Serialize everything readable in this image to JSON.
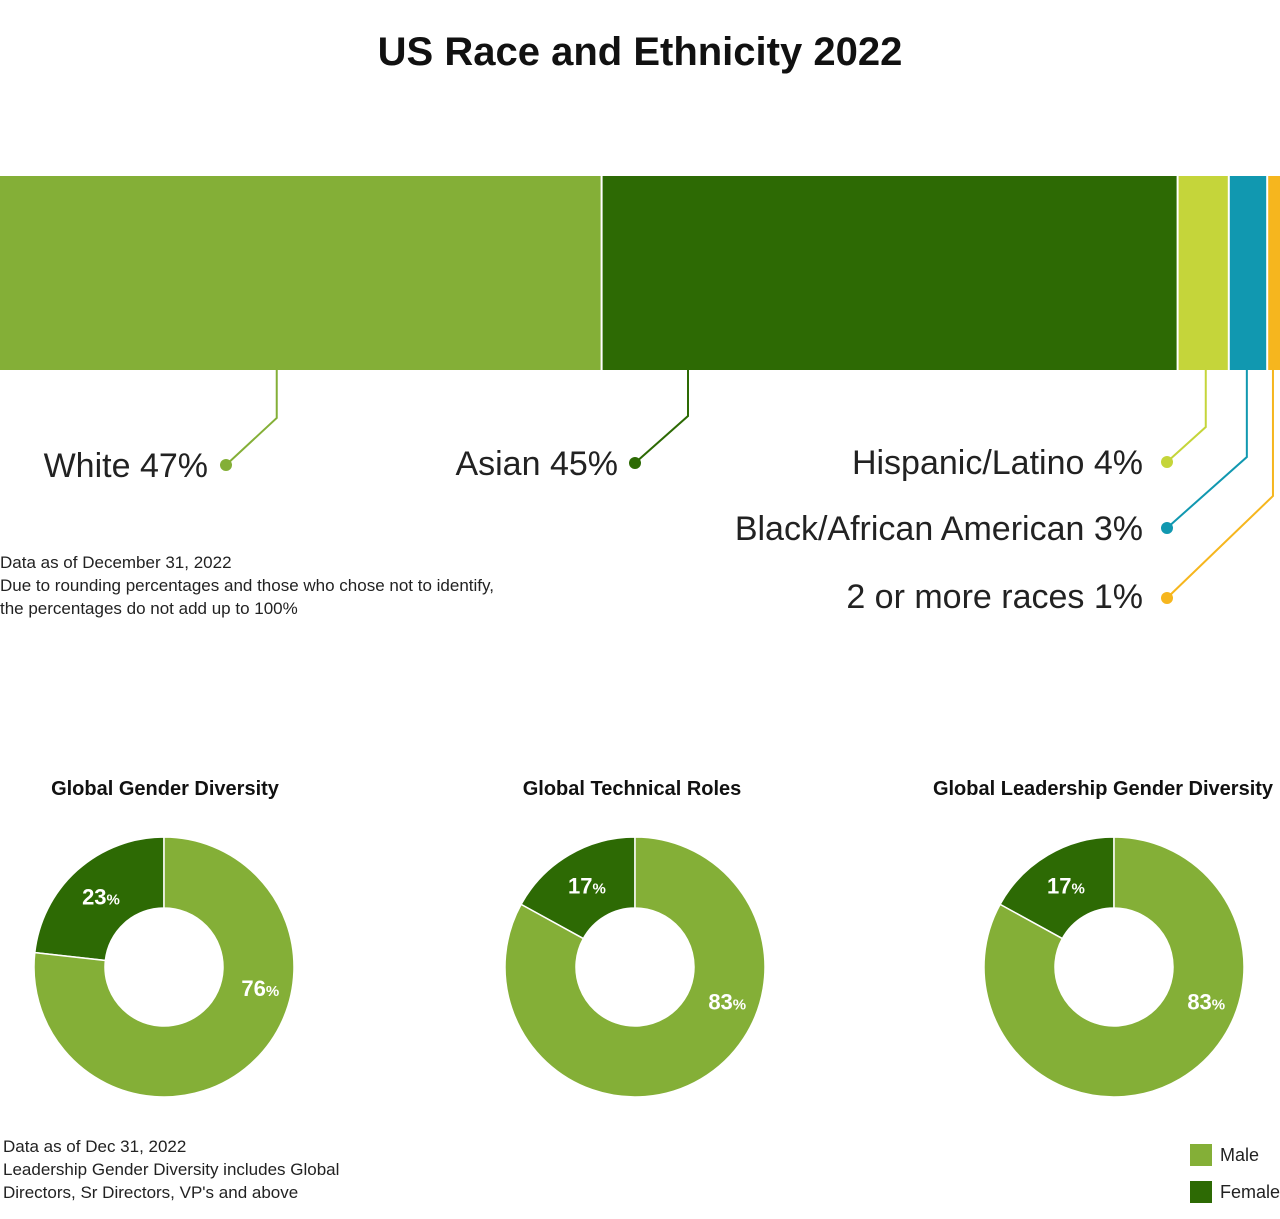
{
  "title": "US Race and Ethnicity 2022",
  "chart_data": [
    {
      "type": "bar",
      "orientation": "horizontal-stacked",
      "title": "US Race and Ethnicity 2022",
      "categories": [
        "White",
        "Asian",
        "Hispanic/Latino",
        "Black/African American",
        "2 or more races"
      ],
      "values": [
        47,
        45,
        4,
        3,
        1
      ],
      "unit": "%",
      "labels": [
        "White 47%",
        "Asian 45%",
        "Hispanic/Latino 4%",
        "Black/African American 3%",
        "2 or more races 1%"
      ],
      "colors": [
        "#84af37",
        "#2d6a04",
        "#c5d53a",
        "#1198b0",
        "#f6b61e"
      ]
    },
    {
      "type": "pie",
      "title": "Global Gender Diversity",
      "categories": [
        "Female",
        "Male"
      ],
      "values": [
        23,
        76
      ],
      "colors": [
        "#2d6a04",
        "#84af37"
      ]
    },
    {
      "type": "pie",
      "title": "Global Technical Roles",
      "categories": [
        "Female",
        "Male"
      ],
      "values": [
        17,
        83
      ],
      "colors": [
        "#2d6a04",
        "#84af37"
      ]
    },
    {
      "type": "pie",
      "title": "Global Leadership Gender Diversity",
      "categories": [
        "Female",
        "Male"
      ],
      "values": [
        17,
        83
      ],
      "colors": [
        "#2d6a04",
        "#84af37"
      ]
    }
  ],
  "race_note": [
    "Data as of December 31, 2022",
    "Due to rounding percentages and those who chose not to identify,",
    "the percentages do not add up to 100%"
  ],
  "gender_note": [
    "Data as of Dec 31, 2022",
    "Leadership Gender Diversity includes Global",
    "Directors, Sr Directors, VP's and above"
  ],
  "legend": [
    {
      "label": "Male",
      "color": "#84af37"
    },
    {
      "label": "Female",
      "color": "#2d6a04"
    }
  ]
}
